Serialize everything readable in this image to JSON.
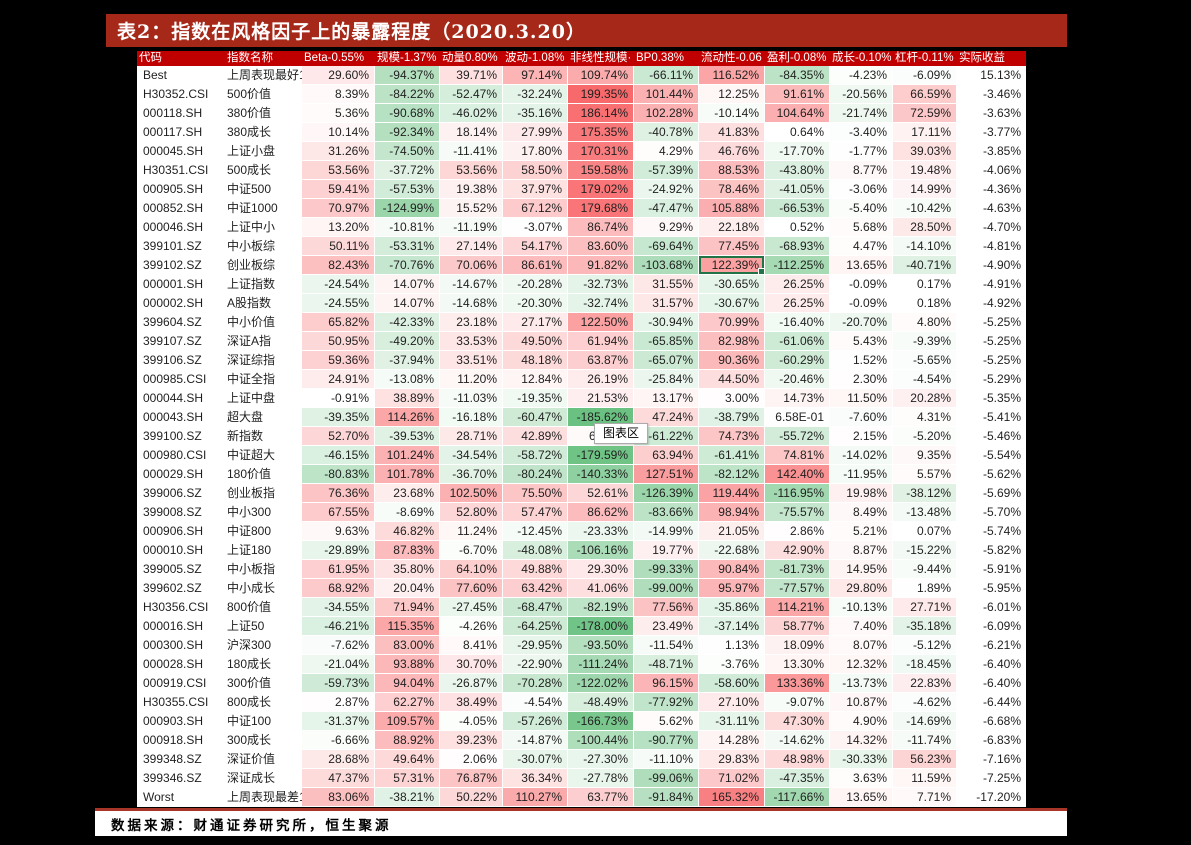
{
  "page": {
    "background": "#000000"
  },
  "title": {
    "text": "表2：指数在风格因子上的暴露程度（2020.3.20）",
    "bg": "#A52819",
    "color": "#FFFFFF"
  },
  "tooltip": {
    "text": "图表区"
  },
  "footer": {
    "text": "数据来源：财通证券研究所，恒生聚源",
    "line_color": "#A93528"
  },
  "colors": {
    "header_bg": "#C00000",
    "header_text": "#FFFFFF",
    "positive_max": "#F8696B",
    "negative_max": "#63BE7B",
    "scale_limit": 195,
    "selection_border": "#217346",
    "cell_text": "#1F1F1F"
  },
  "table": {
    "columns": [
      "代码",
      "指数名称",
      "Beta-0.55%",
      "规模-1.37%",
      "动量0.80%",
      "波动-1.08%",
      "非线性规模·",
      "BP0.38%",
      "流动性-0.06",
      "盈利-0.08%",
      "成长-0.10%",
      "杠杆-0.11%",
      "实际收益"
    ],
    "selected_cell": {
      "row_index": 10,
      "value_index": 6
    },
    "partial_cell": {
      "row_index": 19,
      "value_index": 4
    },
    "rows": [
      {
        "code": "Best",
        "name": "上周表现最好1",
        "values": [
          "29.60%",
          "-94.37%",
          "39.71%",
          "97.14%",
          "109.74%",
          "-66.11%",
          "116.52%",
          "-84.35%",
          "-4.23%",
          "-6.09%"
        ],
        "ret": "15.13%"
      },
      {
        "code": "H30352.CSI",
        "name": "500价值",
        "values": [
          "8.39%",
          "-84.22%",
          "-52.47%",
          "-32.24%",
          "199.35%",
          "101.44%",
          "12.25%",
          "91.61%",
          "-20.56%",
          "66.59%"
        ],
        "ret": "-3.46%"
      },
      {
        "code": "000118.SH",
        "name": "380价值",
        "values": [
          "5.36%",
          "-90.68%",
          "-46.02%",
          "-35.16%",
          "186.14%",
          "102.28%",
          "-10.14%",
          "104.64%",
          "-21.74%",
          "72.59%"
        ],
        "ret": "-3.63%"
      },
      {
        "code": "000117.SH",
        "name": "380成长",
        "values": [
          "10.14%",
          "-92.34%",
          "18.14%",
          "27.99%",
          "175.35%",
          "-40.78%",
          "41.83%",
          "0.64%",
          "-3.40%",
          "17.11%"
        ],
        "ret": "-3.77%"
      },
      {
        "code": "000045.SH",
        "name": "上证小盘",
        "values": [
          "31.26%",
          "-74.50%",
          "-11.41%",
          "17.80%",
          "170.31%",
          "4.29%",
          "46.76%",
          "-17.70%",
          "-1.77%",
          "39.03%"
        ],
        "ret": "-3.85%"
      },
      {
        "code": "H30351.CSI",
        "name": "500成长",
        "values": [
          "53.56%",
          "-37.72%",
          "53.56%",
          "58.50%",
          "159.58%",
          "-57.39%",
          "88.53%",
          "-43.80%",
          "8.77%",
          "19.48%"
        ],
        "ret": "-4.06%"
      },
      {
        "code": "000905.SH",
        "name": "中证500",
        "values": [
          "59.41%",
          "-57.53%",
          "19.38%",
          "37.97%",
          "179.02%",
          "-24.92%",
          "78.46%",
          "-41.05%",
          "-3.06%",
          "14.99%"
        ],
        "ret": "-4.36%"
      },
      {
        "code": "000852.SH",
        "name": "中证1000",
        "values": [
          "70.97%",
          "-124.99%",
          "15.52%",
          "67.12%",
          "179.68%",
          "-47.47%",
          "105.88%",
          "-66.53%",
          "-5.40%",
          "-10.42%"
        ],
        "ret": "-4.63%"
      },
      {
        "code": "000046.SH",
        "name": "上证中小",
        "values": [
          "13.20%",
          "-10.81%",
          "-11.19%",
          "-3.07%",
          "86.74%",
          "9.29%",
          "22.18%",
          "0.52%",
          "5.68%",
          "28.50%"
        ],
        "ret": "-4.70%"
      },
      {
        "code": "399101.SZ",
        "name": "中小板综",
        "values": [
          "50.11%",
          "-53.31%",
          "27.14%",
          "54.17%",
          "83.60%",
          "-69.64%",
          "77.45%",
          "-68.93%",
          "4.47%",
          "-14.10%"
        ],
        "ret": "-4.81%"
      },
      {
        "code": "399102.SZ",
        "name": "创业板综",
        "values": [
          "82.43%",
          "-70.76%",
          "70.06%",
          "86.61%",
          "91.82%",
          "-103.68%",
          "122.39%",
          "-112.25%",
          "13.65%",
          "-40.71%"
        ],
        "ret": "-4.90%"
      },
      {
        "code": "000001.SH",
        "name": "上证指数",
        "values": [
          "-24.54%",
          "14.07%",
          "-14.67%",
          "-20.28%",
          "-32.73%",
          "31.55%",
          "-30.65%",
          "26.25%",
          "-0.09%",
          "0.17%"
        ],
        "ret": "-4.91%"
      },
      {
        "code": "000002.SH",
        "name": "A股指数",
        "values": [
          "-24.55%",
          "14.07%",
          "-14.68%",
          "-20.30%",
          "-32.74%",
          "31.57%",
          "-30.67%",
          "26.25%",
          "-0.09%",
          "0.18%"
        ],
        "ret": "-4.92%"
      },
      {
        "code": "399604.SZ",
        "name": "中小价值",
        "values": [
          "65.82%",
          "-42.33%",
          "23.18%",
          "27.17%",
          "122.50%",
          "-30.94%",
          "70.99%",
          "-16.40%",
          "-20.70%",
          "4.80%"
        ],
        "ret": "-5.25%"
      },
      {
        "code": "399107.SZ",
        "name": "深证A指",
        "values": [
          "50.95%",
          "-49.20%",
          "33.53%",
          "49.50%",
          "61.94%",
          "-65.85%",
          "82.98%",
          "-61.06%",
          "5.43%",
          "-9.39%"
        ],
        "ret": "-5.25%"
      },
      {
        "code": "399106.SZ",
        "name": "深证综指",
        "values": [
          "59.36%",
          "-37.94%",
          "33.51%",
          "48.18%",
          "63.87%",
          "-65.07%",
          "90.36%",
          "-60.29%",
          "1.52%",
          "-5.65%"
        ],
        "ret": "-5.25%"
      },
      {
        "code": "000985.CSI",
        "name": "中证全指",
        "values": [
          "24.91%",
          "-13.08%",
          "11.20%",
          "12.84%",
          "26.19%",
          "-25.84%",
          "44.50%",
          "-20.46%",
          "2.30%",
          "-4.54%"
        ],
        "ret": "-5.29%"
      },
      {
        "code": "000044.SH",
        "name": "上证中盘",
        "values": [
          "-0.91%",
          "38.89%",
          "-11.03%",
          "-19.35%",
          "21.53%",
          "13.17%",
          "3.00%",
          "14.73%",
          "11.50%",
          "20.28%"
        ],
        "ret": "-5.35%"
      },
      {
        "code": "000043.SH",
        "name": "超大盘",
        "values": [
          "-39.35%",
          "114.26%",
          "-16.18%",
          "-60.47%",
          "-185.62%",
          "47.24%",
          "-38.79%",
          "6.58E-01",
          "-7.60%",
          "4.31%"
        ],
        "ret": "-5.41%"
      },
      {
        "code": "399100.SZ",
        "name": "新指数",
        "values": [
          "52.70%",
          "-39.53%",
          "28.71%",
          "42.89%",
          "6",
          "-61.22%",
          "74.73%",
          "-55.72%",
          "2.15%",
          "-5.20%"
        ],
        "ret": "-5.46%"
      },
      {
        "code": "000980.CSI",
        "name": "中证超大",
        "values": [
          "-46.15%",
          "101.24%",
          "-34.54%",
          "-58.72%",
          "-179.59%",
          "63.94%",
          "-61.41%",
          "74.81%",
          "-14.02%",
          "9.35%"
        ],
        "ret": "-5.54%"
      },
      {
        "code": "000029.SH",
        "name": "180价值",
        "values": [
          "-80.83%",
          "101.78%",
          "-36.70%",
          "-80.24%",
          "-140.33%",
          "127.51%",
          "-82.12%",
          "142.40%",
          "-11.95%",
          "5.57%"
        ],
        "ret": "-5.62%"
      },
      {
        "code": "399006.SZ",
        "name": "创业板指",
        "values": [
          "76.36%",
          "23.68%",
          "102.50%",
          "75.50%",
          "52.61%",
          "-126.39%",
          "119.44%",
          "-116.95%",
          "19.98%",
          "-38.12%"
        ],
        "ret": "-5.69%"
      },
      {
        "code": "399008.SZ",
        "name": "中小300",
        "values": [
          "67.55%",
          "-8.69%",
          "52.80%",
          "57.47%",
          "86.62%",
          "-83.66%",
          "98.94%",
          "-75.57%",
          "8.49%",
          "-13.48%"
        ],
        "ret": "-5.70%"
      },
      {
        "code": "000906.SH",
        "name": "中证800",
        "values": [
          "9.63%",
          "46.82%",
          "11.24%",
          "-12.45%",
          "-23.33%",
          "-14.99%",
          "21.05%",
          "2.86%",
          "5.21%",
          "0.07%"
        ],
        "ret": "-5.74%"
      },
      {
        "code": "000010.SH",
        "name": "上证180",
        "values": [
          "-29.89%",
          "87.83%",
          "-6.70%",
          "-48.08%",
          "-106.16%",
          "19.77%",
          "-22.68%",
          "42.90%",
          "8.87%",
          "-15.22%"
        ],
        "ret": "-5.82%"
      },
      {
        "code": "399005.SZ",
        "name": "中小板指",
        "values": [
          "61.95%",
          "35.80%",
          "64.10%",
          "49.88%",
          "29.30%",
          "-99.33%",
          "90.84%",
          "-81.73%",
          "14.95%",
          "-9.44%"
        ],
        "ret": "-5.91%"
      },
      {
        "code": "399602.SZ",
        "name": "中小成长",
        "values": [
          "68.92%",
          "20.04%",
          "77.60%",
          "63.42%",
          "41.06%",
          "-99.00%",
          "95.97%",
          "-77.57%",
          "29.80%",
          "1.89%"
        ],
        "ret": "-5.95%"
      },
      {
        "code": "H30356.CSI",
        "name": "800价值",
        "values": [
          "-34.55%",
          "71.94%",
          "-27.45%",
          "-68.47%",
          "-82.19%",
          "77.56%",
          "-35.86%",
          "114.21%",
          "-10.13%",
          "27.71%"
        ],
        "ret": "-6.01%"
      },
      {
        "code": "000016.SH",
        "name": "上证50",
        "values": [
          "-46.21%",
          "115.35%",
          "-4.26%",
          "-64.25%",
          "-178.00%",
          "23.49%",
          "-37.14%",
          "58.77%",
          "7.40%",
          "-35.18%"
        ],
        "ret": "-6.09%"
      },
      {
        "code": "000300.SH",
        "name": "沪深300",
        "values": [
          "-7.62%",
          "83.00%",
          "8.41%",
          "-29.95%",
          "-93.50%",
          "-11.54%",
          "1.13%",
          "18.09%",
          "8.07%",
          "-5.12%"
        ],
        "ret": "-6.21%"
      },
      {
        "code": "000028.SH",
        "name": "180成长",
        "values": [
          "-21.04%",
          "93.88%",
          "30.70%",
          "-22.90%",
          "-111.24%",
          "-48.71%",
          "-3.76%",
          "13.30%",
          "12.32%",
          "-18.45%"
        ],
        "ret": "-6.40%"
      },
      {
        "code": "000919.CSI",
        "name": "300价值",
        "values": [
          "-59.73%",
          "94.04%",
          "-26.87%",
          "-70.28%",
          "-122.02%",
          "96.15%",
          "-58.60%",
          "133.36%",
          "-13.73%",
          "22.83%"
        ],
        "ret": "-6.40%"
      },
      {
        "code": "H30355.CSI",
        "name": "800成长",
        "values": [
          "2.87%",
          "62.27%",
          "38.49%",
          "-4.54%",
          "-48.49%",
          "-77.92%",
          "27.10%",
          "-9.07%",
          "10.87%",
          "-4.62%"
        ],
        "ret": "-6.44%"
      },
      {
        "code": "000903.SH",
        "name": "中证100",
        "values": [
          "-31.37%",
          "109.57%",
          "-4.05%",
          "-57.26%",
          "-166.73%",
          "5.62%",
          "-31.11%",
          "47.30%",
          "4.90%",
          "-14.69%"
        ],
        "ret": "-6.68%"
      },
      {
        "code": "000918.SH",
        "name": "300成长",
        "values": [
          "-6.66%",
          "88.92%",
          "39.23%",
          "-14.87%",
          "-100.44%",
          "-90.77%",
          "14.28%",
          "-14.62%",
          "14.32%",
          "-11.74%"
        ],
        "ret": "-6.83%"
      },
      {
        "code": "399348.SZ",
        "name": "深证价值",
        "values": [
          "28.68%",
          "49.64%",
          "2.06%",
          "-30.07%",
          "-27.30%",
          "-11.10%",
          "29.83%",
          "48.98%",
          "-30.33%",
          "56.23%"
        ],
        "ret": "-7.16%"
      },
      {
        "code": "399346.SZ",
        "name": "深证成长",
        "values": [
          "47.37%",
          "57.31%",
          "76.87%",
          "36.34%",
          "-27.78%",
          "-99.06%",
          "71.02%",
          "-47.35%",
          "3.63%",
          "11.59%"
        ],
        "ret": "-7.25%"
      },
      {
        "code": "Worst",
        "name": "上周表现最差1",
        "values": [
          "83.06%",
          "-38.21%",
          "50.22%",
          "110.27%",
          "63.77%",
          "-91.84%",
          "165.32%",
          "-117.66%",
          "13.65%",
          "7.71%"
        ],
        "ret": "-17.20%"
      }
    ]
  }
}
